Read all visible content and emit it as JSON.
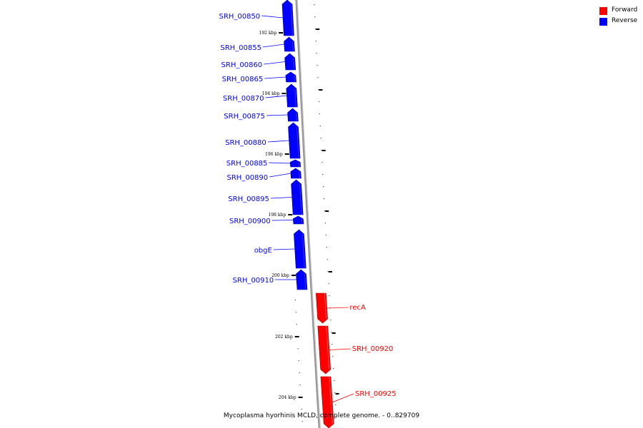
{
  "legend": {
    "forward": {
      "label": "Forward",
      "color": "#ff0000"
    },
    "reverse": {
      "label": "Reverse",
      "color": "#0000ff"
    }
  },
  "caption": "Mycoplasma hyorhinis MCLD, complete genome. - 0..829709",
  "ticks": [
    {
      "label": "192 kbp",
      "kbp": 192
    },
    {
      "label": "194 kbp",
      "kbp": 194
    },
    {
      "label": "196 kbp",
      "kbp": 196
    },
    {
      "label": "198 kbp",
      "kbp": 198
    },
    {
      "label": "200 kbp",
      "kbp": 200
    },
    {
      "label": "202 kbp",
      "kbp": 202
    },
    {
      "label": "204 kbp",
      "kbp": 204
    }
  ],
  "genes": [
    {
      "name": "SRH_00850",
      "strand": "reverse"
    },
    {
      "name": "SRH_00855",
      "strand": "reverse"
    },
    {
      "name": "SRH_00860",
      "strand": "reverse"
    },
    {
      "name": "SRH_00865",
      "strand": "reverse"
    },
    {
      "name": "SRH_00870",
      "strand": "reverse"
    },
    {
      "name": "SRH_00875",
      "strand": "reverse"
    },
    {
      "name": "SRH_00880",
      "strand": "reverse"
    },
    {
      "name": "SRH_00885",
      "strand": "reverse"
    },
    {
      "name": "SRH_00890",
      "strand": "reverse"
    },
    {
      "name": "SRH_00895",
      "strand": "reverse"
    },
    {
      "name": "SRH_00900",
      "strand": "reverse"
    },
    {
      "name": "obgE",
      "strand": "reverse"
    },
    {
      "name": "SRH_00910",
      "strand": "reverse"
    },
    {
      "name": "recA",
      "strand": "forward"
    },
    {
      "name": "SRH_00920",
      "strand": "forward"
    },
    {
      "name": "SRH_00925",
      "strand": "forward"
    }
  ]
}
